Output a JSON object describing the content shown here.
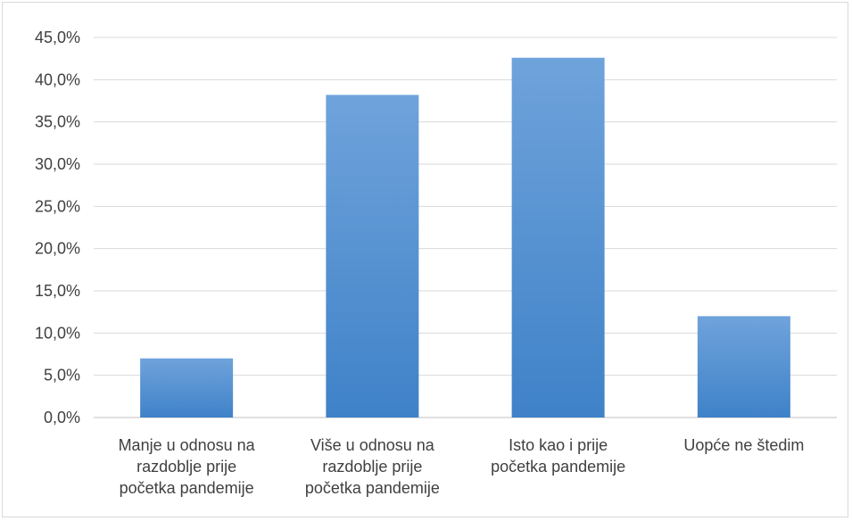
{
  "chart_data": {
    "type": "bar",
    "categories": [
      [
        "Manje u odnosu na",
        "razdoblje prije",
        "početka pandemije"
      ],
      [
        "Više u odnosu na",
        "razdoblje prije",
        "početka pandemije"
      ],
      [
        "Isto kao i prije",
        "početka pandemije"
      ],
      [
        "Uopće ne štedim"
      ]
    ],
    "values": [
      7.0,
      38.2,
      42.6,
      12.0
    ],
    "title": "",
    "xlabel": "",
    "ylabel": "",
    "ylim": [
      0,
      45
    ],
    "yticks": [
      0,
      5,
      10,
      15,
      20,
      25,
      30,
      35,
      40,
      45
    ],
    "ytick_labels": [
      "0,0%",
      "5,0%",
      "10,0%",
      "15,0%",
      "20,0%",
      "25,0%",
      "30,0%",
      "35,0%",
      "40,0%",
      "45,0%"
    ],
    "grid": true,
    "legend": "none",
    "colors": {
      "bar_top": "#6FA3DB",
      "bar_bottom": "#3F82C8",
      "grid": "#d9d9d9",
      "text": "#404040"
    }
  }
}
